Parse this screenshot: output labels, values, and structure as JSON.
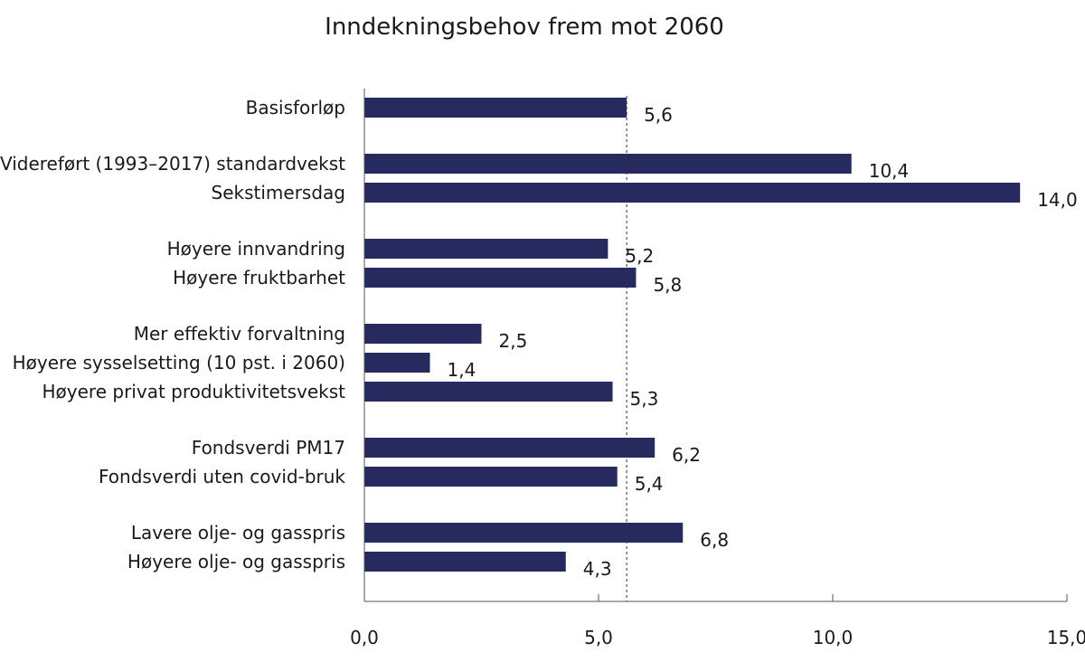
{
  "chart_data": {
    "type": "bar",
    "orientation": "horizontal",
    "title": "Inndekningsbehov frem mot 2060",
    "xlabel": "",
    "ylabel": "",
    "xlim": [
      0,
      15
    ],
    "x_ticks": [
      0,
      5,
      10,
      15
    ],
    "x_tick_labels": [
      "0,0",
      "5,0",
      "10,0",
      "15,0"
    ],
    "reference_line": {
      "value": 5.6,
      "style": "dotted"
    },
    "bar_color": "#262a5e",
    "grid": false,
    "legend": "none",
    "groups": [
      [
        "Basisforløp"
      ],
      [
        "Videreført (1993–2017) standardvekst",
        "Sekstimersdag"
      ],
      [
        "Høyere innvandring",
        "Høyere fruktbarhet"
      ],
      [
        "Mer effektiv forvaltning",
        "Høyere sysselsetting (10 pst. i 2060)",
        "Høyere privat produktivitetsvekst"
      ],
      [
        "Fondsverdi PM17",
        "Fondsverdi uten covid-bruk"
      ],
      [
        "Lavere olje- og gasspris",
        "Høyere olje- og gasspris"
      ]
    ],
    "categories": [
      "Basisforløp",
      "Videreført (1993–2017) standardvekst",
      "Sekstimersdag",
      "Høyere innvandring",
      "Høyere fruktbarhet",
      "Mer effektiv forvaltning",
      "Høyere sysselsetting (10 pst. i 2060)",
      "Høyere privat produktivitetsvekst",
      "Fondsverdi PM17",
      "Fondsverdi uten covid-bruk",
      "Lavere olje- og gasspris",
      "Høyere olje- og gasspris"
    ],
    "values": [
      5.6,
      10.4,
      14.0,
      5.2,
      5.8,
      2.5,
      1.4,
      5.3,
      6.2,
      5.4,
      6.8,
      4.3
    ],
    "value_labels": [
      "5,6",
      "10,4",
      "14,0",
      "5,2",
      "5,8",
      "2,5",
      "1,4",
      "5,3",
      "6,2",
      "5,4",
      "6,8",
      "4,3"
    ]
  }
}
